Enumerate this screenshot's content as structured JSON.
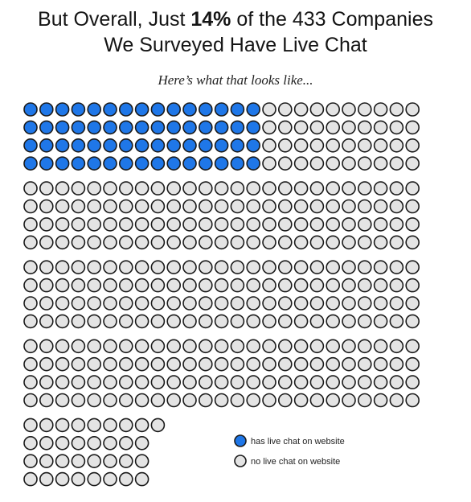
{
  "title": {
    "line1_pre": "But Overall, Just ",
    "line1_bold": "14%",
    "line1_post": " of the 433 Companies",
    "line2": "We Surveyed Have Live Chat"
  },
  "subtitle": "Here’s what that looks like...",
  "chart_data": {
    "type": "waffle",
    "total": 433,
    "highlighted_count": 60,
    "highlighted_percent": 14,
    "columns": 25,
    "rows_per_block": 4,
    "final_rows": [
      9,
      8,
      8,
      8
    ],
    "series": [
      {
        "name": "has live chat on website",
        "value": 60,
        "color": "#1f77e8"
      },
      {
        "name": "no live chat on website",
        "value": 373,
        "color": "#e4e4e4"
      }
    ],
    "legend_placement": "bottom-right"
  }
}
